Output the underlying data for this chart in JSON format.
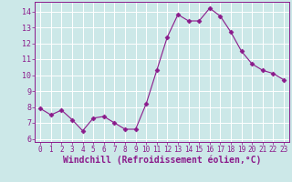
{
  "x": [
    0,
    1,
    2,
    3,
    4,
    5,
    6,
    7,
    8,
    9,
    10,
    11,
    12,
    13,
    14,
    15,
    16,
    17,
    18,
    19,
    20,
    21,
    22,
    23
  ],
  "y": [
    7.9,
    7.5,
    7.8,
    7.2,
    6.5,
    7.3,
    7.4,
    7.0,
    6.6,
    6.6,
    8.2,
    10.3,
    12.4,
    13.8,
    13.4,
    13.4,
    14.2,
    13.7,
    12.7,
    11.5,
    10.7,
    10.3,
    10.1,
    9.7
  ],
  "line_color": "#8b1a8b",
  "marker": "D",
  "marker_size": 2.5,
  "bg_color": "#cce8e8",
  "grid_color": "#ffffff",
  "xlabel": "Windchill (Refroidissement éolien,°C)",
  "tick_color": "#8b1a8b",
  "ylim": [
    5.8,
    14.6
  ],
  "xlim": [
    -0.5,
    23.5
  ],
  "yticks": [
    6,
    7,
    8,
    9,
    10,
    11,
    12,
    13,
    14
  ],
  "xticks": [
    0,
    1,
    2,
    3,
    4,
    5,
    6,
    7,
    8,
    9,
    10,
    11,
    12,
    13,
    14,
    15,
    16,
    17,
    18,
    19,
    20,
    21,
    22,
    23
  ],
  "spine_color": "#8b1a8b",
  "label_fontsize": 7,
  "tick_fontsize": 6,
  "xtick_fontsize": 5.5
}
